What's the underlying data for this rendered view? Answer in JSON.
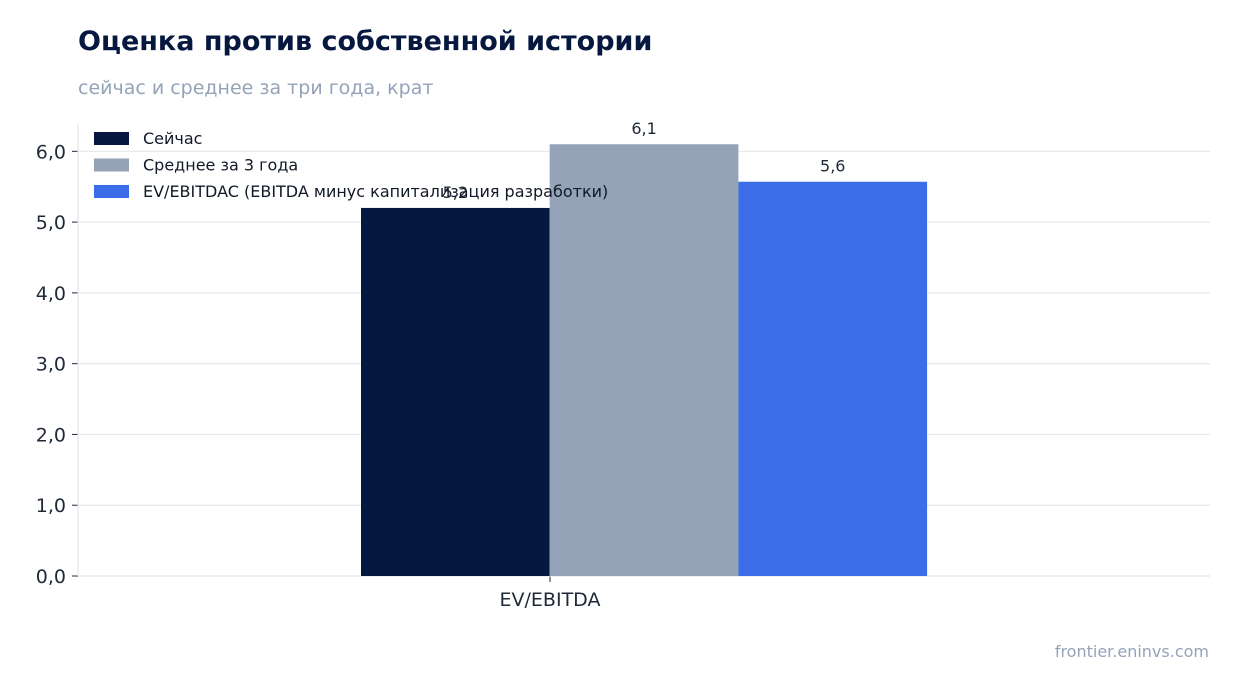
{
  "title": "Оценка против собственной истории",
  "subtitle": "сейчас и среднее за три года, крат",
  "source": "frontier.eninvs.com",
  "chart_data": {
    "type": "bar",
    "categories": [
      "EV/EBITDA"
    ],
    "series": [
      {
        "name": "Сейчас",
        "values": [
          5.2
        ],
        "label": "5,2",
        "color": "#061740"
      },
      {
        "name": "Среднее за 3 года",
        "values": [
          6.1
        ],
        "label": "6,1",
        "color": "#94a3b8"
      },
      {
        "name": "EV/EBITDAC (EBITDA минус капитализация разработки)",
        "values": [
          5.57
        ],
        "label": "5,6",
        "color": "#3b6de8"
      }
    ],
    "ylim": [
      0,
      6.4
    ],
    "yticks": [
      0,
      1,
      2,
      3,
      4,
      5,
      6
    ],
    "ytick_labels": [
      "0,0",
      "1,0",
      "2,0",
      "3,0",
      "4,0",
      "5,0",
      "6,0"
    ],
    "grid": true,
    "legend": "top-left"
  }
}
